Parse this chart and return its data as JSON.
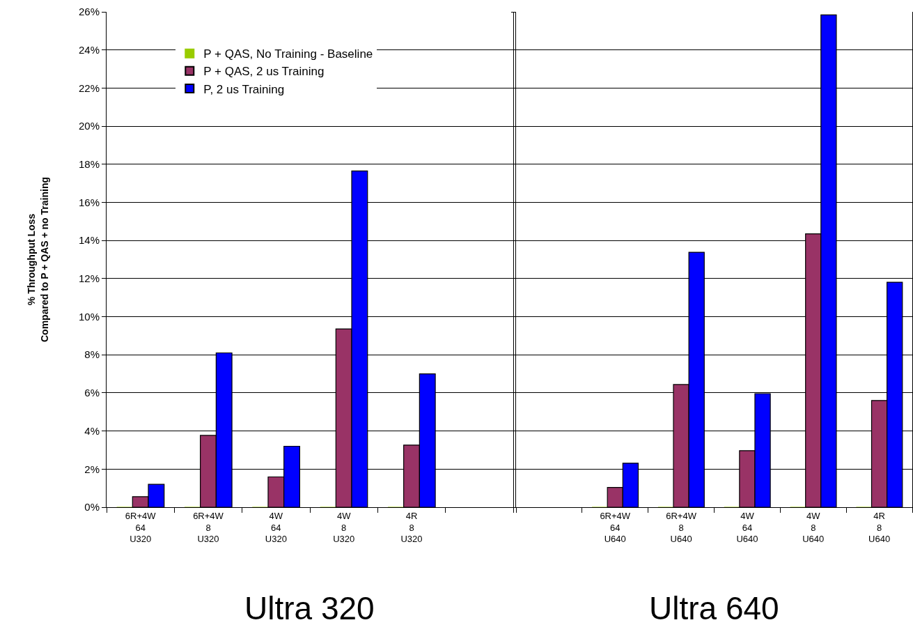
{
  "chart_data": [
    {
      "type": "bar",
      "categories": [
        "6R+4W\n64\nU320",
        "6R+4W\n8\nU320",
        "4W\n64\nU320",
        "4W\n8\nU320",
        "4R\n8\nU320",
        null
      ],
      "series": [
        {
          "name": "P + QAS, No Training - Baseline",
          "color": "#99cc00",
          "values": [
            0,
            0,
            0,
            0,
            0,
            null
          ]
        },
        {
          "name": "P + QAS, 2 us Training",
          "color": "#993366",
          "values": [
            0.55,
            3.77,
            1.59,
            9.36,
            3.26,
            null
          ]
        },
        {
          "name": "P, 2 us Training",
          "color": "#0000ff",
          "values": [
            1.2,
            8.1,
            3.2,
            17.65,
            7.0,
            null
          ]
        }
      ],
      "ylabel": "% Throughput Loss\nCompared to P + QAS + no Training",
      "ylim": [
        0,
        26
      ],
      "yticks": [
        {
          "value": 0,
          "label": "0%"
        },
        {
          "value": 2,
          "label": "2%"
        },
        {
          "value": 4,
          "label": "4%"
        },
        {
          "value": 6,
          "label": "6%"
        },
        {
          "value": 8,
          "label": "8%"
        },
        {
          "value": 10,
          "label": "10%"
        },
        {
          "value": 12,
          "label": "12%"
        },
        {
          "value": 14,
          "label": "14%"
        },
        {
          "value": 16,
          "label": "16%"
        },
        {
          "value": 18,
          "label": "18%"
        },
        {
          "value": 20,
          "label": "20%"
        },
        {
          "value": 22,
          "label": "22%"
        },
        {
          "value": 24,
          "label": "24%"
        },
        {
          "value": 26,
          "label": "26%"
        }
      ],
      "grid": "y",
      "legend": "top left",
      "annotations": [
        "Ultra 320"
      ]
    },
    {
      "type": "bar",
      "categories": [
        null,
        "6R+4W\n64\nU640",
        "6R+4W\n8\nU640",
        "4W\n64\nU640",
        "4W\n8\nU640",
        "4R\n8\nU640"
      ],
      "series": [
        {
          "color": "#99cc00",
          "values": [
            null,
            0,
            0,
            0,
            0,
            0
          ]
        },
        {
          "color": "#993366",
          "values": [
            null,
            1.04,
            6.44,
            2.97,
            14.35,
            5.6
          ]
        },
        {
          "color": "#0000ff",
          "values": [
            null,
            2.31,
            13.38,
            5.96,
            25.84,
            11.81
          ]
        }
      ],
      "ylim": [
        0,
        26
      ],
      "grid": "y",
      "tick_labels": "x",
      "annotations": [
        "Ultra 640"
      ]
    }
  ]
}
